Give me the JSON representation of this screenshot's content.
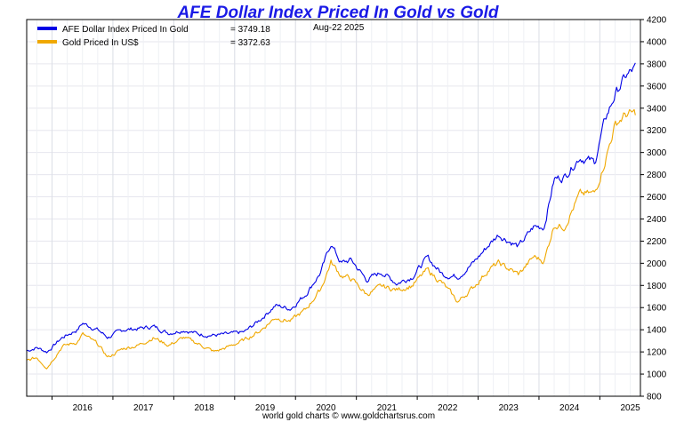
{
  "chart_data": {
    "type": "line",
    "title": "AFE Dollar Index Priced In Gold vs Gold",
    "date_label": "Aug-22  2025",
    "credit": "world gold charts © www.goldchartsrus.com",
    "xlabel": "",
    "ylabel": "",
    "ylim": [
      800,
      4200
    ],
    "y_ticks": [
      "800",
      "1000",
      "1200",
      "1400",
      "1600",
      "1800",
      "2000",
      "2200",
      "2400",
      "2600",
      "2800",
      "3000",
      "3200",
      "3400",
      "3600",
      "3800",
      "4000",
      "4200"
    ],
    "x_ticks": [
      "2016",
      "2017",
      "2018",
      "2019",
      "2020",
      "2021",
      "2022",
      "2023",
      "2024",
      "2025"
    ],
    "x_range": [
      "2015-08",
      "2025-09"
    ],
    "grid": true,
    "legend_position": "top-left",
    "series": [
      {
        "name": "AFE Dollar Index Priced In Gold",
        "latest": "= 3749.18",
        "color": "#0000e6",
        "x": [
          "2015-08",
          "2015-10",
          "2015-12",
          "2016-03",
          "2016-06",
          "2016-07",
          "2016-10",
          "2016-12",
          "2017-03",
          "2017-06",
          "2017-09",
          "2017-12",
          "2018-03",
          "2018-06",
          "2018-09",
          "2018-12",
          "2019-03",
          "2019-06",
          "2019-09",
          "2019-12",
          "2020-03",
          "2020-06",
          "2020-08",
          "2020-10",
          "2020-12",
          "2021-03",
          "2021-06",
          "2021-09",
          "2021-12",
          "2022-03",
          "2022-06",
          "2022-09",
          "2022-12",
          "2023-03",
          "2023-05",
          "2023-09",
          "2023-12",
          "2024-02",
          "2024-04",
          "2024-06",
          "2024-09",
          "2024-12",
          "2025-02",
          "2025-04",
          "2025-06",
          "2025-08"
        ],
        "values": [
          1210,
          1240,
          1200,
          1330,
          1400,
          1460,
          1400,
          1330,
          1400,
          1410,
          1430,
          1370,
          1400,
          1360,
          1350,
          1360,
          1380,
          1490,
          1620,
          1590,
          1720,
          1920,
          2180,
          2000,
          2030,
          1850,
          1920,
          1820,
          1880,
          2050,
          1900,
          1880,
          2000,
          2160,
          2260,
          2150,
          2330,
          2330,
          2760,
          2780,
          2960,
          2910,
          3290,
          3520,
          3680,
          3760
        ]
      },
      {
        "name": "Gold Priced In US$",
        "latest": "= 3372.63",
        "color": "#f0a800",
        "x": [
          "2015-08",
          "2015-10",
          "2015-12",
          "2016-03",
          "2016-06",
          "2016-07",
          "2016-10",
          "2016-12",
          "2017-03",
          "2017-06",
          "2017-09",
          "2017-12",
          "2018-03",
          "2018-06",
          "2018-09",
          "2018-12",
          "2019-03",
          "2019-06",
          "2019-09",
          "2019-12",
          "2020-03",
          "2020-06",
          "2020-08",
          "2020-10",
          "2020-12",
          "2021-03",
          "2021-06",
          "2021-09",
          "2021-12",
          "2022-03",
          "2022-06",
          "2022-09",
          "2022-12",
          "2023-03",
          "2023-05",
          "2023-09",
          "2023-12",
          "2024-02",
          "2024-04",
          "2024-06",
          "2024-09",
          "2024-12",
          "2025-02",
          "2025-04",
          "2025-06",
          "2025-08"
        ],
        "values": [
          1120,
          1150,
          1060,
          1250,
          1290,
          1360,
          1270,
          1150,
          1230,
          1260,
          1330,
          1260,
          1330,
          1270,
          1200,
          1250,
          1310,
          1390,
          1510,
          1480,
          1580,
          1770,
          2010,
          1890,
          1860,
          1720,
          1790,
          1760,
          1800,
          1940,
          1820,
          1650,
          1780,
          1940,
          2000,
          1900,
          2060,
          2020,
          2350,
          2330,
          2620,
          2630,
          2920,
          3250,
          3340,
          3350
        ]
      }
    ]
  }
}
